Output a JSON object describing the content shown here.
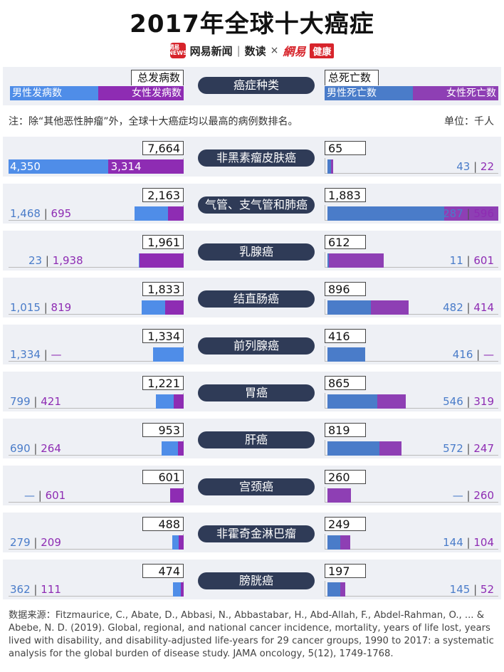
{
  "title": "2017年全球十大癌症",
  "brand": {
    "logo_text": "網易 NEWS",
    "name1": "网易新闻",
    "sep": "|",
    "name2": "数读",
    "times": "×",
    "name3": "網易",
    "name4": "健康"
  },
  "legend": {
    "incidence_total": "总发病数",
    "male_incidence": "男性发病数",
    "female_incidence": "女性发病数",
    "category": "癌症种类",
    "death_total": "总死亡数",
    "male_death": "男性死亡数",
    "female_death": "女性死亡数"
  },
  "note": "注：除“其他恶性肿瘤”外，全球十大癌症均以最高的病例数排名。",
  "unit": "单位：千人",
  "colors": {
    "male_incidence": "#4f8de8",
    "female_incidence": "#8e2cb3",
    "male_death": "#4a7cc9",
    "female_death": "#8e3fb4",
    "pill": "#2f3b57",
    "panel": "#eef0f5"
  },
  "chart_data": {
    "type": "bar",
    "incidence_max": 7664,
    "death_max": 1883,
    "categories": [
      "非黑素瘤皮肤癌",
      "气管、支气管和肺癌",
      "乳腺癌",
      "结直肠癌",
      "前列腺癌",
      "胃癌",
      "肝癌",
      "宫颈癌",
      "非霍奇金淋巴瘤",
      "膀胱癌"
    ],
    "series": [
      {
        "name": "男性发病数",
        "values": [
          4350,
          1468,
          23,
          1015,
          1334,
          799,
          690,
          null,
          279,
          362
        ]
      },
      {
        "name": "女性发病数",
        "values": [
          3314,
          695,
          1938,
          819,
          null,
          421,
          264,
          601,
          209,
          111
        ]
      },
      {
        "name": "总发病数",
        "values": [
          7664,
          2163,
          1961,
          1833,
          1334,
          1221,
          953,
          601,
          488,
          474
        ]
      },
      {
        "name": "男性死亡数",
        "values": [
          43,
          1287,
          11,
          482,
          416,
          546,
          572,
          null,
          144,
          145
        ]
      },
      {
        "name": "女性死亡数",
        "values": [
          22,
          596,
          601,
          414,
          null,
          319,
          247,
          260,
          104,
          52
        ]
      },
      {
        "name": "总死亡数",
        "values": [
          65,
          1883,
          612,
          896,
          416,
          865,
          819,
          260,
          249,
          197
        ]
      }
    ],
    "rows": [
      {
        "name": "非黑素瘤皮肤癌",
        "inc_total": "7,664",
        "inc_m": "4,350",
        "inc_f": "3,314",
        "dea_total": "65",
        "dea_m": "43",
        "dea_f": "22"
      },
      {
        "name": "气管、支气管和肺癌",
        "inc_total": "2,163",
        "inc_m": "1,468",
        "inc_f": "695",
        "dea_total": "1,883",
        "dea_m": "1,287",
        "dea_f": "596"
      },
      {
        "name": "乳腺癌",
        "inc_total": "1,961",
        "inc_m": "23",
        "inc_f": "1,938",
        "dea_total": "612",
        "dea_m": "11",
        "dea_f": "601"
      },
      {
        "name": "结直肠癌",
        "inc_total": "1,833",
        "inc_m": "1,015",
        "inc_f": "819",
        "dea_total": "896",
        "dea_m": "482",
        "dea_f": "414"
      },
      {
        "name": "前列腺癌",
        "inc_total": "1,334",
        "inc_m": "1,334",
        "inc_f": "—",
        "dea_total": "416",
        "dea_m": "416",
        "dea_f": "—"
      },
      {
        "name": "胃癌",
        "inc_total": "1,221",
        "inc_m": "799",
        "inc_f": "421",
        "dea_total": "865",
        "dea_m": "546",
        "dea_f": "319"
      },
      {
        "name": "肝癌",
        "inc_total": "953",
        "inc_m": "690",
        "inc_f": "264",
        "dea_total": "819",
        "dea_m": "572",
        "dea_f": "247"
      },
      {
        "name": "宫颈癌",
        "inc_total": "601",
        "inc_m": "—",
        "inc_f": "601",
        "dea_total": "260",
        "dea_m": "—",
        "dea_f": "260"
      },
      {
        "name": "非霍奇金淋巴瘤",
        "inc_total": "488",
        "inc_m": "279",
        "inc_f": "209",
        "dea_total": "249",
        "dea_m": "144",
        "dea_f": "104"
      },
      {
        "name": "膀胱癌",
        "inc_total": "474",
        "inc_m": "362",
        "inc_f": "111",
        "dea_total": "197",
        "dea_m": "145",
        "dea_f": "52"
      }
    ]
  },
  "source": "数据来源：Fitzmaurice, C., Abate, D., Abbasi, N., Abbastabar, H., Abd-Allah, F., Abdel-Rahman, O., ... & Abebe, N. D. (2019). Global, regional, and national cancer incidence, mortality, years of life lost, years lived with disability, and disability-adjusted life-years for 29 cancer groups, 1990 to 2017: a systematic analysis for the global burden of disease study. JAMA oncology, 5(12), 1749-1768."
}
